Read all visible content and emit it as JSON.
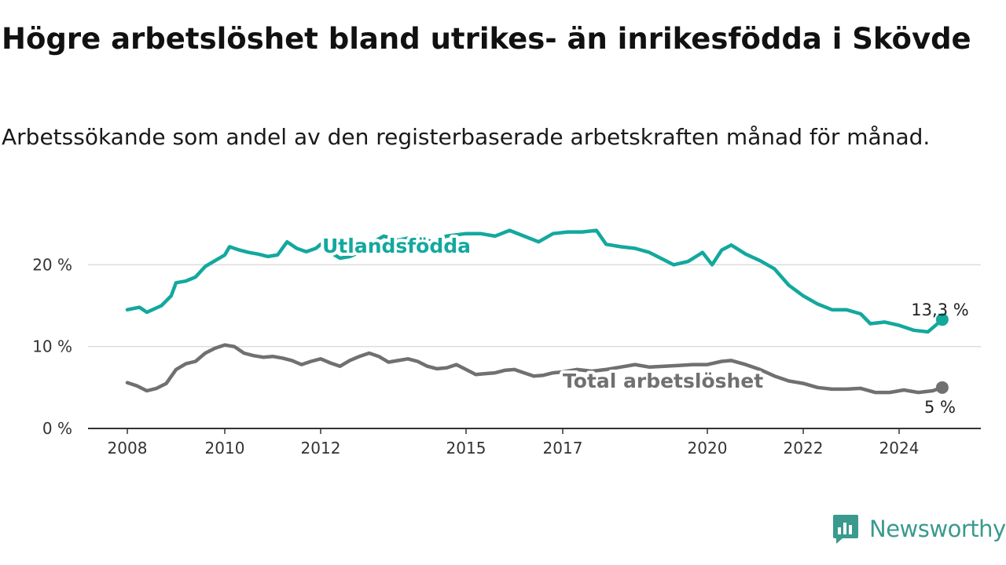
{
  "title": "Högre arbetslöshet bland utrikes- än inrikesfödda i Skövde",
  "subtitle": "Arbetssökande som andel av den registerbaserade arbetskraften månad för månad.",
  "brand": "Newsworthy",
  "colors": {
    "series_foreign": "#13a89e",
    "series_total": "#707070",
    "grid": "#dddddd",
    "axis": "#333333",
    "brand": "#3a9a8e"
  },
  "chart_data": {
    "type": "line",
    "x_ticks": [
      2008,
      2010,
      2012,
      2015,
      2017,
      2020,
      2022,
      2024
    ],
    "y_ticks": [
      0,
      10,
      20
    ],
    "y_tick_labels": [
      "0 %",
      "10 %",
      "20 %"
    ],
    "xlim": [
      2008,
      2025.8
    ],
    "ylim": [
      0,
      25.5
    ],
    "grid": true,
    "series": [
      {
        "name": "Utlandsfödda",
        "end_label": "13,3 %",
        "points": [
          [
            2008.0,
            14.5
          ],
          [
            2008.25,
            14.8
          ],
          [
            2008.4,
            14.2
          ],
          [
            2008.7,
            15.0
          ],
          [
            2008.9,
            16.2
          ],
          [
            2009.0,
            17.8
          ],
          [
            2009.2,
            18.0
          ],
          [
            2009.4,
            18.5
          ],
          [
            2009.6,
            19.8
          ],
          [
            2009.8,
            20.5
          ],
          [
            2010.0,
            21.2
          ],
          [
            2010.1,
            22.2
          ],
          [
            2010.3,
            21.8
          ],
          [
            2010.5,
            21.5
          ],
          [
            2010.7,
            21.3
          ],
          [
            2010.9,
            21.0
          ],
          [
            2011.1,
            21.2
          ],
          [
            2011.3,
            22.8
          ],
          [
            2011.5,
            22.0
          ],
          [
            2011.7,
            21.6
          ],
          [
            2011.9,
            22.0
          ],
          [
            2012.0,
            22.5
          ],
          [
            2012.2,
            21.5
          ],
          [
            2012.4,
            20.8
          ],
          [
            2012.6,
            21.0
          ],
          [
            2012.8,
            21.5
          ],
          [
            2013.0,
            22.5
          ],
          [
            2013.3,
            23.5
          ],
          [
            2013.6,
            23.0
          ],
          [
            2014.0,
            23.5
          ],
          [
            2014.3,
            22.8
          ],
          [
            2014.6,
            23.5
          ],
          [
            2015.0,
            23.8
          ],
          [
            2015.3,
            23.8
          ],
          [
            2015.6,
            23.5
          ],
          [
            2015.9,
            24.2
          ],
          [
            2016.2,
            23.5
          ],
          [
            2016.5,
            22.8
          ],
          [
            2016.8,
            23.8
          ],
          [
            2017.1,
            24.0
          ],
          [
            2017.4,
            24.0
          ],
          [
            2017.7,
            24.2
          ],
          [
            2017.9,
            22.5
          ],
          [
            2018.2,
            22.2
          ],
          [
            2018.5,
            22.0
          ],
          [
            2018.8,
            21.5
          ],
          [
            2019.1,
            20.6
          ],
          [
            2019.3,
            20.0
          ],
          [
            2019.6,
            20.4
          ],
          [
            2019.9,
            21.5
          ],
          [
            2020.1,
            20.0
          ],
          [
            2020.3,
            21.8
          ],
          [
            2020.5,
            22.4
          ],
          [
            2020.8,
            21.3
          ],
          [
            2021.1,
            20.5
          ],
          [
            2021.4,
            19.5
          ],
          [
            2021.7,
            17.5
          ],
          [
            2022.0,
            16.2
          ],
          [
            2022.3,
            15.2
          ],
          [
            2022.6,
            14.5
          ],
          [
            2022.9,
            14.5
          ],
          [
            2023.2,
            14.0
          ],
          [
            2023.4,
            12.8
          ],
          [
            2023.7,
            13.0
          ],
          [
            2024.0,
            12.6
          ],
          [
            2024.3,
            12.0
          ],
          [
            2024.6,
            11.8
          ],
          [
            2024.9,
            13.3
          ]
        ]
      },
      {
        "name": "Total arbetslöshet",
        "end_label": "5 %",
        "points": [
          [
            2008.0,
            5.6
          ],
          [
            2008.2,
            5.2
          ],
          [
            2008.4,
            4.6
          ],
          [
            2008.6,
            4.9
          ],
          [
            2008.8,
            5.5
          ],
          [
            2009.0,
            7.2
          ],
          [
            2009.2,
            7.9
          ],
          [
            2009.4,
            8.2
          ],
          [
            2009.6,
            9.2
          ],
          [
            2009.8,
            9.8
          ],
          [
            2010.0,
            10.2
          ],
          [
            2010.2,
            10.0
          ],
          [
            2010.4,
            9.2
          ],
          [
            2010.6,
            8.9
          ],
          [
            2010.8,
            8.7
          ],
          [
            2011.0,
            8.8
          ],
          [
            2011.2,
            8.6
          ],
          [
            2011.4,
            8.3
          ],
          [
            2011.6,
            7.8
          ],
          [
            2011.8,
            8.2
          ],
          [
            2012.0,
            8.5
          ],
          [
            2012.2,
            8.0
          ],
          [
            2012.4,
            7.6
          ],
          [
            2012.6,
            8.3
          ],
          [
            2012.8,
            8.8
          ],
          [
            2013.0,
            9.2
          ],
          [
            2013.2,
            8.8
          ],
          [
            2013.4,
            8.1
          ],
          [
            2013.6,
            8.3
          ],
          [
            2013.8,
            8.5
          ],
          [
            2014.0,
            8.2
          ],
          [
            2014.2,
            7.6
          ],
          [
            2014.4,
            7.3
          ],
          [
            2014.6,
            7.4
          ],
          [
            2014.8,
            7.8
          ],
          [
            2015.0,
            7.2
          ],
          [
            2015.2,
            6.6
          ],
          [
            2015.4,
            6.7
          ],
          [
            2015.6,
            6.8
          ],
          [
            2015.8,
            7.1
          ],
          [
            2016.0,
            7.2
          ],
          [
            2016.2,
            6.8
          ],
          [
            2016.4,
            6.4
          ],
          [
            2016.6,
            6.5
          ],
          [
            2016.8,
            6.8
          ],
          [
            2017.0,
            6.9
          ],
          [
            2017.3,
            7.2
          ],
          [
            2017.6,
            7.0
          ],
          [
            2017.9,
            7.2
          ],
          [
            2018.2,
            7.5
          ],
          [
            2018.5,
            7.8
          ],
          [
            2018.8,
            7.5
          ],
          [
            2019.1,
            7.6
          ],
          [
            2019.4,
            7.7
          ],
          [
            2019.7,
            7.8
          ],
          [
            2020.0,
            7.8
          ],
          [
            2020.3,
            8.2
          ],
          [
            2020.5,
            8.3
          ],
          [
            2020.8,
            7.8
          ],
          [
            2021.1,
            7.2
          ],
          [
            2021.4,
            6.4
          ],
          [
            2021.7,
            5.8
          ],
          [
            2022.0,
            5.5
          ],
          [
            2022.3,
            5.0
          ],
          [
            2022.6,
            4.8
          ],
          [
            2022.9,
            4.8
          ],
          [
            2023.2,
            4.9
          ],
          [
            2023.5,
            4.4
          ],
          [
            2023.8,
            4.4
          ],
          [
            2024.1,
            4.7
          ],
          [
            2024.4,
            4.4
          ],
          [
            2024.7,
            4.6
          ],
          [
            2024.9,
            5.0
          ]
        ]
      }
    ]
  }
}
